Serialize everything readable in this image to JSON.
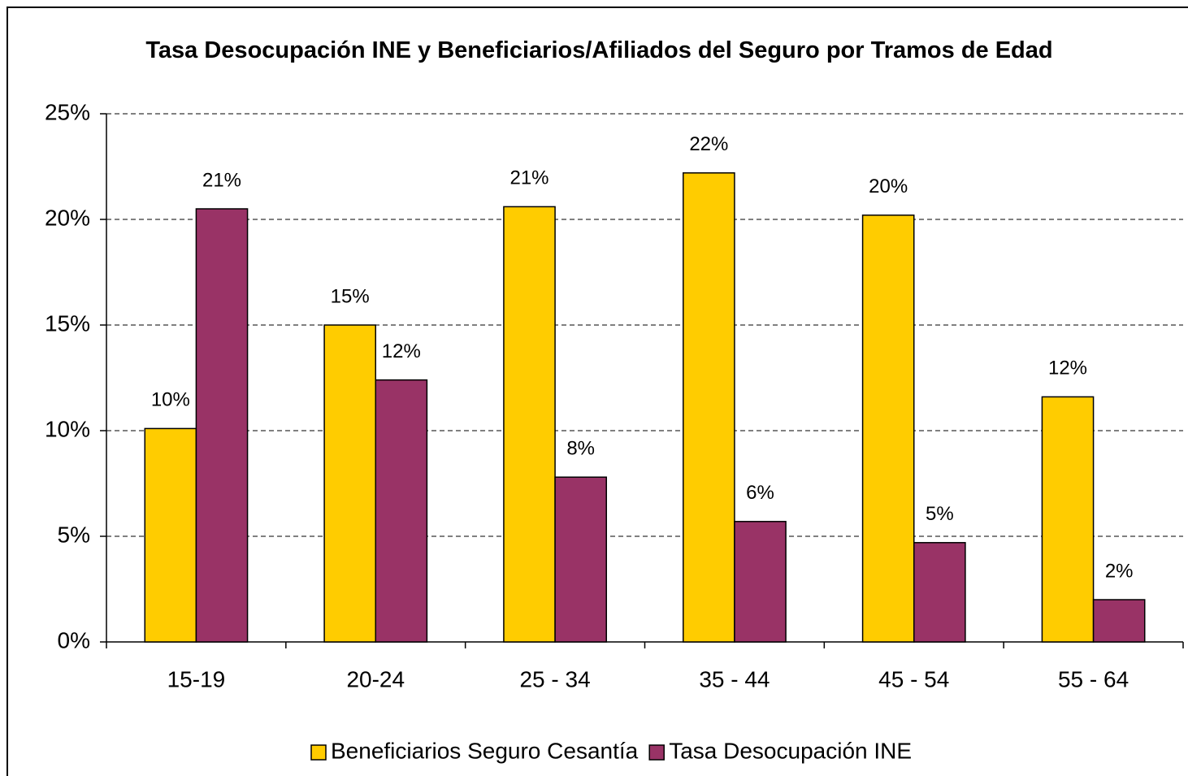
{
  "chart_data": {
    "type": "bar",
    "title": "Tasa Desocupación INE y Beneficiarios/Afiliados del Seguro por Tramos de Edad",
    "categories": [
      "15-19",
      "20-24",
      "25 - 34",
      "35 - 44",
      "45 - 54",
      "55 - 64"
    ],
    "series": [
      {
        "name": "Beneficiarios Seguro Cesantía",
        "color": "#ffcc00",
        "values": [
          10.1,
          15.0,
          20.6,
          22.2,
          20.2,
          11.6
        ],
        "value_labels": [
          "10%",
          "15%",
          "21%",
          "22%",
          "20%",
          "12%"
        ]
      },
      {
        "name": "Tasa Desocupación INE",
        "color": "#993366",
        "values": [
          20.5,
          12.4,
          7.8,
          5.7,
          4.7,
          2.0
        ],
        "value_labels": [
          "21%",
          "12%",
          "8%",
          "6%",
          "5%",
          "2%"
        ]
      }
    ],
    "ylim": [
      0,
      25
    ],
    "yticks": [
      {
        "value": 0,
        "label": "0%"
      },
      {
        "value": 5,
        "label": "5%"
      },
      {
        "value": 10,
        "label": "10%"
      },
      {
        "value": 15,
        "label": "15%"
      },
      {
        "value": 20,
        "label": "20%"
      },
      {
        "value": 25,
        "label": "25%"
      }
    ],
    "grid": true,
    "legend": "bottom"
  }
}
